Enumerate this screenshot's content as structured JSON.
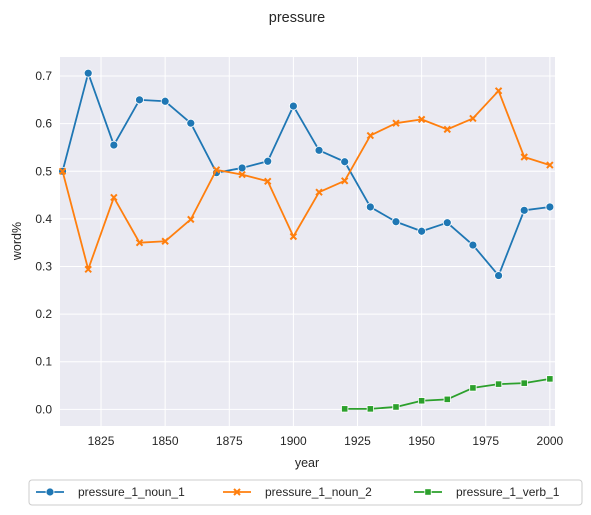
{
  "chart_data": {
    "type": "line",
    "title": "pressure",
    "xlabel": "year",
    "ylabel": "word%",
    "xlim": [
      1809,
      2002
    ],
    "ylim": [
      -0.035,
      0.74
    ],
    "xticks": [
      1825,
      1850,
      1875,
      1900,
      1925,
      1950,
      1975,
      2000
    ],
    "yticks": [
      0.0,
      0.1,
      0.2,
      0.3,
      0.4,
      0.5,
      0.6,
      0.7
    ],
    "grid": true,
    "background": "#eaeaf2",
    "legend_position": "bottom-center",
    "series": [
      {
        "name": "pressure_1_noun_1",
        "color": "#1f77b4",
        "marker": "circle",
        "x": [
          1810,
          1820,
          1830,
          1840,
          1850,
          1860,
          1870,
          1880,
          1890,
          1900,
          1910,
          1920,
          1930,
          1940,
          1950,
          1960,
          1970,
          1980,
          1990,
          2000
        ],
        "y": [
          0.5,
          0.706,
          0.555,
          0.65,
          0.647,
          0.601,
          0.497,
          0.507,
          0.521,
          0.637,
          0.544,
          0.52,
          0.425,
          0.394,
          0.374,
          0.392,
          0.345,
          0.281,
          0.418,
          0.425
        ]
      },
      {
        "name": "pressure_1_noun_2",
        "color": "#ff7f0e",
        "marker": "x",
        "x": [
          1810,
          1820,
          1830,
          1840,
          1850,
          1860,
          1870,
          1880,
          1890,
          1900,
          1910,
          1920,
          1930,
          1940,
          1950,
          1960,
          1970,
          1980,
          1990,
          2000
        ],
        "y": [
          0.5,
          0.294,
          0.445,
          0.35,
          0.353,
          0.399,
          0.503,
          0.493,
          0.479,
          0.363,
          0.456,
          0.48,
          0.575,
          0.601,
          0.609,
          0.588,
          0.611,
          0.669,
          0.53,
          0.513
        ]
      },
      {
        "name": "pressure_1_verb_1",
        "color": "#2ca02c",
        "marker": "square",
        "x": [
          1920,
          1930,
          1940,
          1950,
          1960,
          1970,
          1980,
          1990,
          2000
        ],
        "y": [
          0.001,
          0.001,
          0.005,
          0.018,
          0.021,
          0.045,
          0.053,
          0.055,
          0.064
        ]
      }
    ]
  }
}
